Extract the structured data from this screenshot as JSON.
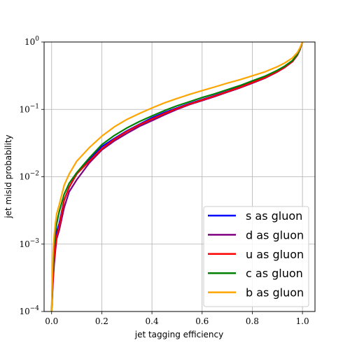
{
  "chart_data": {
    "type": "line",
    "xlabel": "jet tagging efficiency",
    "ylabel": "jet misid probability",
    "xlim": [
      -0.03,
      1.05
    ],
    "ylim": [
      0.0001,
      1
    ],
    "yscale": "log",
    "grid": true,
    "legend_position": "lower-right",
    "x_ticks": [
      {
        "value": 0.0,
        "label": "0.0"
      },
      {
        "value": 0.2,
        "label": "0.2"
      },
      {
        "value": 0.4,
        "label": "0.4"
      },
      {
        "value": 0.6,
        "label": "0.6"
      },
      {
        "value": 0.8,
        "label": "0.8"
      },
      {
        "value": 1.0,
        "label": "1.0"
      }
    ],
    "y_ticks": [
      {
        "value": 0.0001,
        "base": "10",
        "exp": "−4"
      },
      {
        "value": 0.001,
        "base": "10",
        "exp": "−3"
      },
      {
        "value": 0.01,
        "base": "10",
        "exp": "−2"
      },
      {
        "value": 0.1,
        "base": "10",
        "exp": "−1"
      },
      {
        "value": 1,
        "base": "10",
        "exp": "0"
      }
    ],
    "series": [
      {
        "name": "s as gluon",
        "color": "#0000ff",
        "x": [
          0.0,
          0.003,
          0.006,
          0.01,
          0.015,
          0.02,
          0.03,
          0.05,
          0.07,
          0.1,
          0.15,
          0.2,
          0.25,
          0.3,
          0.35,
          0.4,
          0.45,
          0.5,
          0.55,
          0.6,
          0.65,
          0.7,
          0.75,
          0.8,
          0.85,
          0.9,
          0.93,
          0.96,
          0.98,
          0.99,
          1.0
        ],
        "y": [
          0.0001,
          0.0002,
          0.0004,
          0.0007,
          0.001,
          0.0015,
          0.002,
          0.0045,
          0.007,
          0.011,
          0.018,
          0.028,
          0.037,
          0.048,
          0.06,
          0.075,
          0.09,
          0.105,
          0.122,
          0.14,
          0.16,
          0.185,
          0.215,
          0.255,
          0.3,
          0.37,
          0.43,
          0.52,
          0.65,
          0.78,
          1.0
        ]
      },
      {
        "name": "d as gluon",
        "color": "#800080",
        "x": [
          0.0,
          0.003,
          0.006,
          0.01,
          0.015,
          0.02,
          0.03,
          0.05,
          0.07,
          0.1,
          0.15,
          0.2,
          0.25,
          0.3,
          0.35,
          0.4,
          0.45,
          0.5,
          0.55,
          0.6,
          0.65,
          0.7,
          0.75,
          0.8,
          0.85,
          0.9,
          0.93,
          0.96,
          0.98,
          0.99,
          1.0
        ],
        "y": [
          0.0001,
          0.00018,
          0.0003,
          0.0005,
          0.0008,
          0.0012,
          0.0016,
          0.0035,
          0.006,
          0.009,
          0.016,
          0.025,
          0.034,
          0.044,
          0.056,
          0.068,
          0.083,
          0.1,
          0.118,
          0.135,
          0.155,
          0.18,
          0.208,
          0.245,
          0.29,
          0.36,
          0.42,
          0.51,
          0.64,
          0.77,
          1.0
        ]
      },
      {
        "name": "u as gluon",
        "color": "#ff0000",
        "x": [
          0.0,
          0.003,
          0.006,
          0.01,
          0.015,
          0.02,
          0.03,
          0.05,
          0.07,
          0.1,
          0.15,
          0.2,
          0.25,
          0.3,
          0.35,
          0.4,
          0.45,
          0.5,
          0.55,
          0.6,
          0.65,
          0.7,
          0.75,
          0.8,
          0.85,
          0.9,
          0.93,
          0.96,
          0.98,
          0.99,
          1.0
        ],
        "y": [
          0.0001,
          0.0002,
          0.00035,
          0.0006,
          0.0009,
          0.0013,
          0.0018,
          0.0045,
          0.007,
          0.011,
          0.017,
          0.026,
          0.036,
          0.047,
          0.059,
          0.072,
          0.087,
          0.103,
          0.12,
          0.138,
          0.158,
          0.183,
          0.212,
          0.25,
          0.295,
          0.365,
          0.425,
          0.515,
          0.645,
          0.775,
          1.0
        ]
      },
      {
        "name": "c as gluon",
        "color": "#008000",
        "x": [
          0.0,
          0.003,
          0.006,
          0.01,
          0.015,
          0.02,
          0.03,
          0.05,
          0.07,
          0.1,
          0.15,
          0.2,
          0.25,
          0.3,
          0.35,
          0.4,
          0.45,
          0.5,
          0.55,
          0.6,
          0.65,
          0.7,
          0.75,
          0.8,
          0.85,
          0.9,
          0.93,
          0.96,
          0.98,
          0.99,
          1.0
        ],
        "y": [
          0.0001,
          0.0003,
          0.0006,
          0.001,
          0.0015,
          0.002,
          0.003,
          0.0055,
          0.008,
          0.0115,
          0.019,
          0.03,
          0.041,
          0.053,
          0.066,
          0.08,
          0.096,
          0.113,
          0.13,
          0.15,
          0.17,
          0.196,
          0.225,
          0.265,
          0.31,
          0.38,
          0.44,
          0.53,
          0.66,
          0.79,
          1.0
        ]
      },
      {
        "name": "b as gluon",
        "color": "#ffa500",
        "x": [
          0.0,
          0.003,
          0.006,
          0.01,
          0.015,
          0.02,
          0.03,
          0.05,
          0.07,
          0.1,
          0.15,
          0.2,
          0.25,
          0.3,
          0.35,
          0.4,
          0.45,
          0.5,
          0.55,
          0.6,
          0.65,
          0.7,
          0.75,
          0.8,
          0.85,
          0.9,
          0.93,
          0.96,
          0.98,
          0.99,
          1.0
        ],
        "y": [
          0.0001,
          0.0004,
          0.0008,
          0.0013,
          0.002,
          0.0028,
          0.0038,
          0.0075,
          0.011,
          0.017,
          0.027,
          0.04,
          0.055,
          0.071,
          0.087,
          0.105,
          0.125,
          0.145,
          0.167,
          0.19,
          0.215,
          0.245,
          0.275,
          0.315,
          0.36,
          0.43,
          0.49,
          0.58,
          0.7,
          0.82,
          1.0
        ]
      }
    ]
  }
}
